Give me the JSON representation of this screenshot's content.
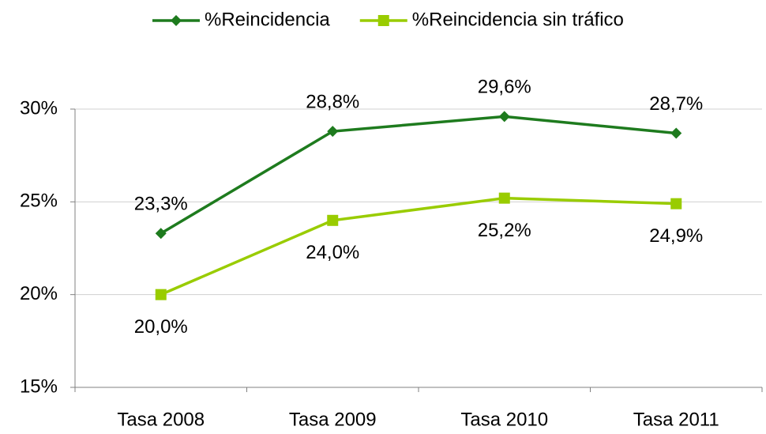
{
  "chart_data": {
    "type": "line",
    "categories": [
      "Tasa 2008",
      "Tasa 2009",
      "Tasa 2010",
      "Tasa 2011"
    ],
    "series": [
      {
        "name": "%Reincidencia",
        "color": "#1e7b1e",
        "marker": "diamond",
        "label_position": "above",
        "values": [
          23.3,
          28.8,
          29.6,
          28.7
        ],
        "value_labels": [
          "23,3%",
          "28,8%",
          "29,6%",
          "28,7%"
        ]
      },
      {
        "name": "%Reincidencia sin tráfico",
        "color": "#99cc00",
        "marker": "square",
        "label_position": "below",
        "values": [
          20.0,
          24.0,
          25.2,
          24.9
        ],
        "value_labels": [
          "20,0%",
          "24,0%",
          "25,2%",
          "24,9%"
        ]
      }
    ],
    "ylim": [
      15,
      30
    ],
    "yticks": [
      {
        "value": 15,
        "label": "15%"
      },
      {
        "value": 20,
        "label": "20%"
      },
      {
        "value": 25,
        "label": "25%"
      },
      {
        "value": 30,
        "label": "30%"
      }
    ],
    "grid": true,
    "legend": "top"
  }
}
